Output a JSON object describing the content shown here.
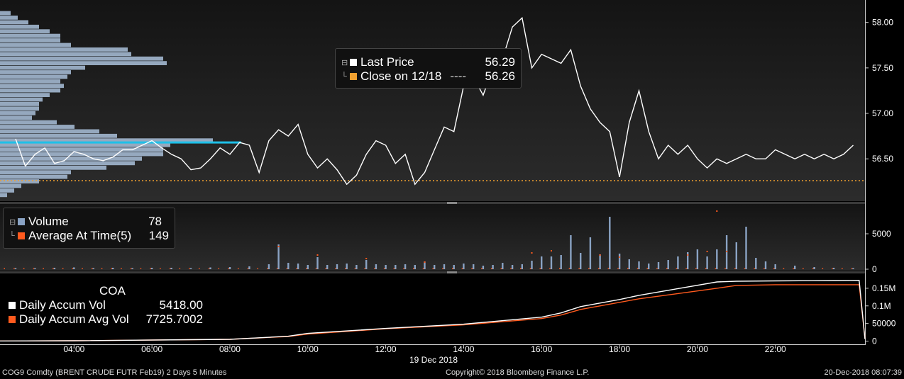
{
  "chart_data": [
    {
      "type": "line",
      "panel": "price",
      "series": [
        {
          "name": "Last Price",
          "color": "#ffffff",
          "x": [
            2.5,
            2.75,
            3.0,
            3.25,
            3.5,
            3.75,
            4.0,
            4.25,
            4.5,
            4.75,
            5.0,
            5.25,
            5.5,
            5.75,
            6.0,
            6.25,
            6.5,
            6.75,
            7.0,
            7.25,
            7.5,
            7.75,
            8.0,
            8.25,
            8.5,
            8.75,
            9.0,
            9.25,
            9.5,
            9.75,
            10.0,
            10.25,
            10.5,
            10.75,
            11.0,
            11.25,
            11.5,
            11.75,
            12.0,
            12.25,
            12.5,
            12.75,
            13.0,
            13.25,
            13.5,
            13.75,
            14.0,
            14.25,
            14.5,
            14.75,
            15.0,
            15.25,
            15.5,
            15.75,
            16.0,
            16.25,
            16.5,
            16.75,
            17.0,
            17.25,
            17.5,
            17.75,
            18.0,
            18.25,
            18.5,
            18.75,
            19.0,
            19.25,
            19.5,
            19.75,
            20.0,
            20.25,
            20.5,
            20.75,
            21.0,
            21.25,
            21.5,
            21.75,
            22.0,
            22.25,
            22.5,
            22.75,
            23.0,
            23.25,
            23.5,
            23.75,
            24.0
          ],
          "values": [
            56.72,
            56.42,
            56.55,
            56.62,
            56.45,
            56.48,
            56.58,
            56.55,
            56.5,
            56.48,
            56.52,
            56.6,
            56.6,
            56.65,
            56.7,
            56.62,
            56.55,
            56.5,
            56.38,
            56.4,
            56.5,
            56.62,
            56.55,
            56.68,
            56.65,
            56.35,
            56.7,
            56.82,
            56.75,
            56.88,
            56.55,
            56.4,
            56.5,
            56.38,
            56.22,
            56.32,
            56.55,
            56.7,
            56.65,
            56.45,
            56.55,
            56.22,
            56.35,
            56.6,
            56.85,
            56.8,
            57.3,
            57.4,
            57.2,
            57.5,
            57.6,
            57.95,
            58.05,
            57.5,
            57.65,
            57.6,
            57.55,
            57.7,
            57.3,
            57.05,
            56.9,
            56.8,
            56.3,
            56.9,
            57.25,
            56.8,
            56.5,
            56.65,
            56.55,
            56.65,
            56.5,
            56.4,
            56.5,
            56.45,
            56.5,
            56.55,
            56.5,
            56.5,
            56.6,
            56.55,
            56.5,
            56.55,
            56.5,
            56.55,
            56.5,
            56.55,
            56.65
          ]
        },
        {
          "name": "Close on 12/18",
          "color": "#f0a030",
          "value": 56.26
        }
      ],
      "yticks": [
        "58.00",
        "57.50",
        "57.00",
        "56.50"
      ],
      "ylim": [
        56.05,
        58.2
      ],
      "volume_profile": {
        "color": "#a0b4cc",
        "prices": [
          58.1,
          58.05,
          58.0,
          57.95,
          57.9,
          57.85,
          57.8,
          57.75,
          57.7,
          57.65,
          57.6,
          57.55,
          57.5,
          57.45,
          57.4,
          57.35,
          57.3,
          57.25,
          57.2,
          57.15,
          57.1,
          57.05,
          57.0,
          56.95,
          56.9,
          56.85,
          56.8,
          56.75,
          56.7,
          56.65,
          56.6,
          56.55,
          56.5,
          56.45,
          56.4,
          56.35,
          56.3,
          56.25,
          56.2,
          56.15,
          56.1
        ],
        "values": [
          15,
          25,
          40,
          55,
          70,
          85,
          85,
          100,
          180,
          185,
          230,
          235,
          120,
          100,
          95,
          85,
          90,
          85,
          70,
          60,
          55,
          55,
          50,
          45,
          80,
          105,
          140,
          165,
          300,
          240,
          230,
          230,
          200,
          190,
          150,
          100,
          95,
          55,
          30,
          20,
          10
        ],
        "poc_price": 56.68,
        "poc_color": "#1ec0e8"
      }
    },
    {
      "type": "bar",
      "panel": "volume",
      "series": [
        {
          "name": "Volume",
          "color": "#8aa3c4",
          "x": [
            2.5,
            3.0,
            3.5,
            4.0,
            4.5,
            5.0,
            5.5,
            6.0,
            6.5,
            7.0,
            7.5,
            8.0,
            8.5,
            9.0,
            9.25,
            9.5,
            9.75,
            10.0,
            10.25,
            10.5,
            10.75,
            11.0,
            11.25,
            11.5,
            11.75,
            12.0,
            12.25,
            12.5,
            12.75,
            13.0,
            13.25,
            13.5,
            13.75,
            14.0,
            14.25,
            14.5,
            14.75,
            15.0,
            15.25,
            15.5,
            15.75,
            16.0,
            16.25,
            16.5,
            16.75,
            17.0,
            17.25,
            17.5,
            17.75,
            18.0,
            18.25,
            18.5,
            18.75,
            19.0,
            19.25,
            19.5,
            19.75,
            20.0,
            20.25,
            20.5,
            20.75,
            21.0,
            21.25,
            21.5,
            21.75,
            22.0,
            22.5,
            23.0,
            23.5,
            24.0
          ],
          "values": [
            150,
            150,
            200,
            250,
            150,
            200,
            150,
            200,
            200,
            150,
            250,
            300,
            400,
            700,
            3500,
            900,
            800,
            600,
            1700,
            600,
            700,
            800,
            600,
            1300,
            700,
            600,
            600,
            700,
            600,
            1100,
            600,
            700,
            600,
            800,
            700,
            500,
            600,
            900,
            600,
            700,
            1200,
            1800,
            1800,
            2000,
            4800,
            2300,
            4500,
            2100,
            7400,
            2200,
            1400,
            1100,
            800,
            1000,
            1300,
            1800,
            2400,
            2800,
            1800,
            2800,
            4800,
            3800,
            6000,
            1600,
            1100,
            700,
            500,
            300,
            200,
            150
          ]
        },
        {
          "name": "Average At Time(5)",
          "color": "#ff5a1e",
          "x": [
            9.25,
            10.25,
            11.5,
            13.0,
            15.75,
            16.25,
            17.5,
            18.0,
            19.75,
            20.25,
            20.5,
            20.75
          ],
          "values": [
            3200,
            2000,
            1500,
            1000,
            2300,
            2600,
            2000,
            1700,
            2000,
            2500,
            8200,
            2500
          ]
        }
      ],
      "legend_values": {
        "Volume": "78",
        "Average At Time(5)": "149"
      },
      "yticks": [
        "5000",
        "0"
      ],
      "ylim": [
        0,
        8800
      ]
    },
    {
      "type": "line",
      "panel": "accumulated",
      "title": "COA",
      "series": [
        {
          "name": "Daily Accum Vol",
          "color": "#ffffff",
          "x": [
            0.5,
            4,
            8,
            9.5,
            10,
            12,
            14,
            16,
            16.5,
            17,
            18,
            18.5,
            19.5,
            20.5,
            21,
            22,
            23.5,
            24.15,
            24.3
          ],
          "values": [
            0,
            1000,
            5000,
            14000,
            22000,
            36000,
            48000,
            68000,
            80000,
            98000,
            118000,
            130000,
            149000,
            168000,
            170000,
            171000,
            172000,
            172500,
            5418
          ]
        },
        {
          "name": "Daily Accum Avg Vol",
          "color": "#ff5a1e",
          "x": [
            0.5,
            4,
            8,
            9.5,
            10,
            12,
            14,
            16,
            16.5,
            17,
            18,
            18.5,
            19.5,
            20.5,
            21,
            22,
            23.5,
            24.15,
            24.3
          ],
          "values": [
            0,
            1000,
            5000,
            13000,
            20000,
            35000,
            46000,
            64000,
            74000,
            90000,
            110000,
            120000,
            135000,
            150000,
            158000,
            160000,
            160000,
            160000,
            7725
          ]
        }
      ],
      "legend_values": {
        "Daily Accum Vol": "5418.00",
        "Daily Accum Avg Vol": "7725.7002"
      },
      "yticks": [
        "0.15M",
        "0.1M",
        "50000",
        "0"
      ],
      "ylim": [
        -5000,
        180000
      ]
    }
  ],
  "x_axis": {
    "ticks": [
      4,
      6,
      8,
      10,
      12,
      14,
      16,
      18,
      20,
      22
    ],
    "tick_labels": [
      "04:00",
      "06:00",
      "08:00",
      "10:00",
      "12:00",
      "14:00",
      "16:00",
      "18:00",
      "20:00",
      "22:00"
    ],
    "date_label": "19 Dec 2018",
    "xlim": [
      2.1,
      24.3
    ]
  },
  "legend_price": {
    "last_label": "Last Price",
    "last_value": "56.29",
    "close_label": "Close on 12/18",
    "close_dashes": "----",
    "close_value": "56.26"
  },
  "legend_volume": {
    "vol_label": "Volume",
    "vol_value": "78",
    "avg_label": "Average At Time(5)",
    "avg_value": "149"
  },
  "legend_accum": {
    "title": "COA",
    "vol_label": "Daily Accum Vol",
    "vol_value": "5418.00",
    "avg_label": "Daily Accum Avg Vol",
    "avg_value": "7725.7002"
  },
  "footer": {
    "security": "COG9 Comdty (BRENT CRUDE FUTR  Feb19) 2 Days 5 Minutes",
    "copyright": "Copyright© 2018 Bloomberg Finance L.P.",
    "timestamp": "20-Dec-2018 08:07:39"
  },
  "colors": {
    "background": "#000000",
    "panel": "#1e1e1e",
    "white_series": "#ffffff",
    "orange": "#ff5a1e",
    "close_orange": "#f0a030",
    "volume_blue": "#8aa3c4",
    "poc_cyan": "#1ec0e8"
  }
}
